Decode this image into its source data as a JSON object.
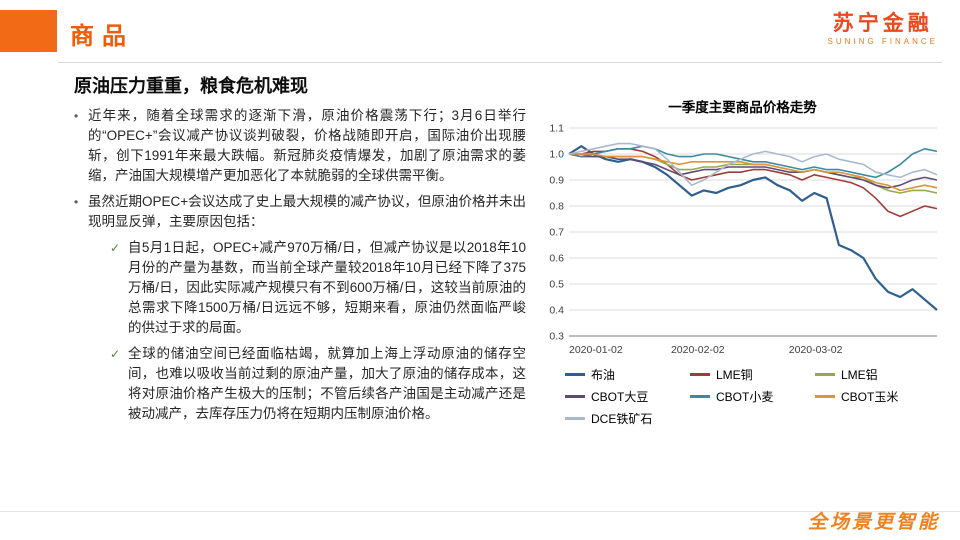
{
  "header": {
    "section_title": "商品",
    "brand_name": "苏宁金融",
    "brand_subtitle": "SUNING FINANCE",
    "accent_color": "#f26a15"
  },
  "content": {
    "title": "原油压力重重，粮食危机难现",
    "bullets": [
      "近年来，随着全球需求的逐渐下滑，原油价格震荡下行；3月6日举行的“OPEC+”会议减产协议谈判破裂，价格战随即开启，国际油价出现腰斩，创下1991年来最大跌幅。新冠肺炎疫情爆发，加剧了原油需求的萎缩，产油国大规模增产更加恶化了本就脆弱的全球供需平衡。",
      "虽然近期OPEC+会议达成了史上最大规模的减产协议，但原油价格并未出现明显反弹，主要原因包括："
    ],
    "sub_bullets": [
      "自5月1日起，OPEC+减产970万桶/日，但减产协议是以2018年10月份的产量为基数，而当前全球产量较2018年10月已经下降了375万桶/日，因此实际减产规模只有不到600万桶/日，这较当前原油的总需求下降1500万桶/日远远不够，短期来看，原油仍然面临严峻的供过于求的局面。",
      "全球的储油空间已经面临枯竭，就算加上海上浮动原油的储存空间，也难以吸收当前过剩的原油产量，加大了原油的储存成本，这将对原油价格产生极大的压制；不管后续各产油国是主动减产还是被动减产，去库存压力仍将在短期内压制原油价格。"
    ],
    "bullet_marker": "•",
    "sub_bullet_marker": "✓"
  },
  "chart_data": {
    "type": "line",
    "title": "一季度主要商品价格走势",
    "ylim": [
      0.3,
      1.1
    ],
    "yticks": [
      1.1,
      1.0,
      0.9,
      0.8,
      0.7,
      0.6,
      0.5,
      0.4,
      0.3
    ],
    "xticks": [
      {
        "label": "2020-01-02",
        "frac": 0.0
      },
      {
        "label": "2020-02-02",
        "frac": 0.35
      },
      {
        "label": "2020-03-02",
        "frac": 0.67
      }
    ],
    "grid": true,
    "legend_position": "bottom",
    "series": [
      {
        "name": "布油",
        "color": "#2f5f8f",
        "values": [
          1.0,
          1.03,
          1.0,
          0.98,
          0.97,
          0.98,
          0.97,
          0.95,
          0.92,
          0.88,
          0.84,
          0.86,
          0.85,
          0.87,
          0.88,
          0.9,
          0.91,
          0.88,
          0.86,
          0.82,
          0.85,
          0.83,
          0.65,
          0.63,
          0.6,
          0.52,
          0.47,
          0.45,
          0.48,
          0.44,
          0.4
        ]
      },
      {
        "name": "LME铜",
        "color": "#9e3d38",
        "values": [
          1.0,
          1.0,
          1.01,
          1.01,
          1.02,
          1.02,
          1.01,
          0.99,
          0.96,
          0.92,
          0.9,
          0.91,
          0.92,
          0.93,
          0.93,
          0.94,
          0.94,
          0.93,
          0.92,
          0.9,
          0.92,
          0.91,
          0.9,
          0.89,
          0.87,
          0.83,
          0.78,
          0.76,
          0.78,
          0.8,
          0.79
        ]
      },
      {
        "name": "LME铝",
        "color": "#93ab4a",
        "values": [
          1.0,
          1.0,
          0.99,
          0.99,
          0.99,
          0.99,
          0.99,
          0.98,
          0.96,
          0.94,
          0.94,
          0.95,
          0.95,
          0.96,
          0.96,
          0.96,
          0.96,
          0.95,
          0.94,
          0.93,
          0.94,
          0.93,
          0.92,
          0.91,
          0.91,
          0.88,
          0.86,
          0.85,
          0.86,
          0.86,
          0.85
        ]
      },
      {
        "name": "CBOT大豆",
        "color": "#5f4b79",
        "values": [
          1.0,
          0.99,
          0.99,
          0.99,
          0.98,
          0.98,
          0.97,
          0.96,
          0.94,
          0.92,
          0.93,
          0.94,
          0.94,
          0.95,
          0.95,
          0.95,
          0.95,
          0.94,
          0.93,
          0.93,
          0.94,
          0.93,
          0.92,
          0.91,
          0.9,
          0.88,
          0.87,
          0.88,
          0.9,
          0.91,
          0.9
        ]
      },
      {
        "name": "CBOT小麦",
        "color": "#3a8ba0",
        "values": [
          1.0,
          0.99,
          1.0,
          1.01,
          1.02,
          1.02,
          1.03,
          1.02,
          1.0,
          0.99,
          0.99,
          1.0,
          1.0,
          0.99,
          0.98,
          0.97,
          0.97,
          0.96,
          0.95,
          0.94,
          0.95,
          0.94,
          0.94,
          0.93,
          0.92,
          0.91,
          0.93,
          0.96,
          1.0,
          1.02,
          1.01
        ]
      },
      {
        "name": "CBOT玉米",
        "color": "#dd9537",
        "values": [
          1.0,
          1.0,
          1.0,
          0.99,
          0.99,
          0.99,
          0.99,
          0.98,
          0.97,
          0.96,
          0.97,
          0.97,
          0.97,
          0.97,
          0.97,
          0.96,
          0.96,
          0.95,
          0.94,
          0.93,
          0.94,
          0.93,
          0.93,
          0.92,
          0.91,
          0.89,
          0.88,
          0.86,
          0.87,
          0.88,
          0.87
        ]
      },
      {
        "name": "DCE铁矿石",
        "color": "#a9bacc",
        "values": [
          1.0,
          1.01,
          1.02,
          1.03,
          1.04,
          1.04,
          1.03,
          1.02,
          0.98,
          0.93,
          0.88,
          0.9,
          0.93,
          0.96,
          0.98,
          1.0,
          1.01,
          1.0,
          0.99,
          0.97,
          0.99,
          1.0,
          0.98,
          0.97,
          0.96,
          0.93,
          0.92,
          0.91,
          0.93,
          0.94,
          0.92
        ]
      }
    ]
  },
  "footer": {
    "slogan": "全场景更智能"
  }
}
